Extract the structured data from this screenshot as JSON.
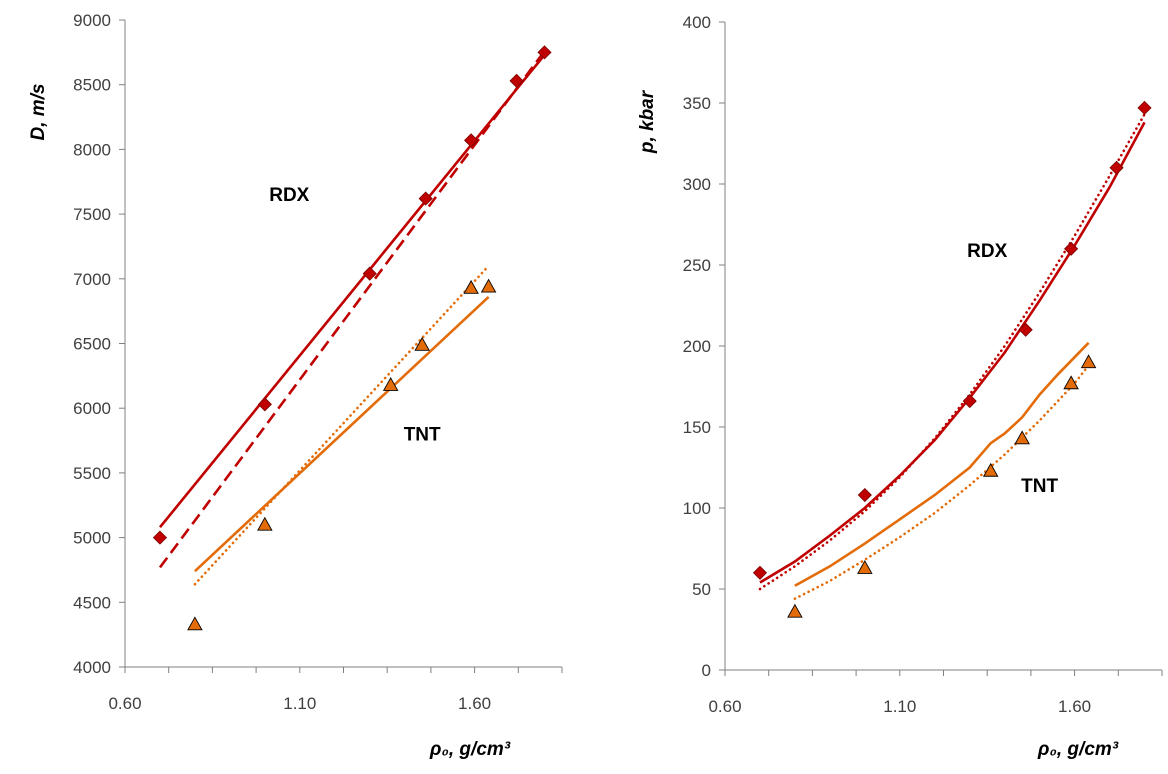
{
  "colors": {
    "rdx": "#c00000",
    "tnt": "#e36c09",
    "axis": "#808080"
  },
  "chart_data": [
    {
      "type": "scatter",
      "ylabel": "D, m/s",
      "xlabel": "ρ₀, g/cm³",
      "xlim": [
        0.6,
        1.85
      ],
      "ylim": [
        4000,
        9000
      ],
      "xticks": [
        "0.60",
        "1.10",
        "1.60"
      ],
      "yticks": [
        "4000",
        "4500",
        "5000",
        "5500",
        "6000",
        "6500",
        "7000",
        "7500",
        "8000",
        "8500",
        "9000"
      ],
      "annotations": [
        {
          "text": "RDX",
          "x": 1.07,
          "y": 7600
        },
        {
          "text": "TNT",
          "x": 1.45,
          "y": 5750
        }
      ],
      "series": [
        {
          "group": "rdx",
          "kind": "points",
          "marker": "diamond",
          "x": [
            0.7,
            1.0,
            1.3,
            1.46,
            1.59,
            1.72,
            1.8
          ],
          "y": [
            5000,
            6030,
            7040,
            7620,
            8070,
            8530,
            8750
          ]
        },
        {
          "group": "rdx",
          "kind": "line",
          "dash": "solid",
          "x": [
            0.7,
            1.8
          ],
          "y": [
            5080,
            8730
          ]
        },
        {
          "group": "rdx",
          "kind": "line",
          "dash": "dashed",
          "x": [
            0.7,
            1.8
          ],
          "y": [
            4770,
            8760
          ]
        },
        {
          "group": "tnt",
          "kind": "points",
          "marker": "triangle",
          "x": [
            0.8,
            1.0,
            1.36,
            1.45,
            1.59,
            1.64
          ],
          "y": [
            4330,
            5100,
            6180,
            6490,
            6930,
            6940
          ]
        },
        {
          "group": "tnt",
          "kind": "line",
          "dash": "solid",
          "x": [
            0.8,
            1.64
          ],
          "y": [
            4740,
            6860
          ]
        },
        {
          "group": "tnt",
          "kind": "line",
          "dash": "dotted",
          "x": [
            0.8,
            1.64
          ],
          "y": [
            4640,
            7100
          ]
        }
      ]
    },
    {
      "type": "scatter",
      "ylabel": "p, kbar",
      "xlabel": "ρ₀, g/cm³",
      "xlim": [
        0.6,
        1.85
      ],
      "ylim": [
        0,
        400
      ],
      "xticks": [
        "0.60",
        "1.10",
        "1.60"
      ],
      "yticks": [
        "0",
        "50",
        "100",
        "150",
        "200",
        "250",
        "300",
        "350",
        "400"
      ],
      "annotations": [
        {
          "text": "RDX",
          "x": 1.35,
          "y": 255
        },
        {
          "text": "TNT",
          "x": 1.5,
          "y": 110
        }
      ],
      "series": [
        {
          "group": "rdx",
          "kind": "points",
          "marker": "diamond",
          "x": [
            0.7,
            1.0,
            1.3,
            1.46,
            1.59,
            1.72,
            1.8
          ],
          "y": [
            60,
            108,
            166,
            210,
            260,
            310,
            347
          ]
        },
        {
          "group": "rdx",
          "kind": "line",
          "dash": "solid",
          "x": [
            0.7,
            0.8,
            0.9,
            1.0,
            1.1,
            1.2,
            1.3,
            1.4,
            1.5,
            1.6,
            1.7,
            1.8
          ],
          "y": [
            54,
            67,
            83,
            100,
            120,
            142,
            168,
            196,
            228,
            262,
            298,
            338
          ]
        },
        {
          "group": "rdx",
          "kind": "line",
          "dash": "dotted",
          "x": [
            0.7,
            0.8,
            0.9,
            1.0,
            1.1,
            1.2,
            1.3,
            1.4,
            1.5,
            1.6,
            1.7,
            1.8
          ],
          "y": [
            50,
            64,
            80,
            98,
            119,
            143,
            170,
            200,
            233,
            268,
            305,
            343
          ]
        },
        {
          "group": "tnt",
          "kind": "points",
          "marker": "triangle",
          "x": [
            0.8,
            1.0,
            1.36,
            1.45,
            1.59,
            1.64
          ],
          "y": [
            36,
            63,
            123,
            143,
            177,
            190
          ]
        },
        {
          "group": "tnt",
          "kind": "line",
          "dash": "solid",
          "x": [
            0.8,
            0.9,
            1.0,
            1.1,
            1.2,
            1.3,
            1.36,
            1.4,
            1.45,
            1.5,
            1.55,
            1.64
          ],
          "y": [
            52,
            64,
            78,
            93,
            108,
            125,
            140,
            146,
            156,
            170,
            182,
            202
          ]
        },
        {
          "group": "tnt",
          "kind": "line",
          "dash": "dotted",
          "x": [
            0.8,
            0.9,
            1.0,
            1.1,
            1.2,
            1.3,
            1.4,
            1.5,
            1.6,
            1.64
          ],
          "y": [
            44,
            55,
            68,
            82,
            97,
            114,
            133,
            154,
            177,
            188
          ]
        }
      ]
    }
  ]
}
